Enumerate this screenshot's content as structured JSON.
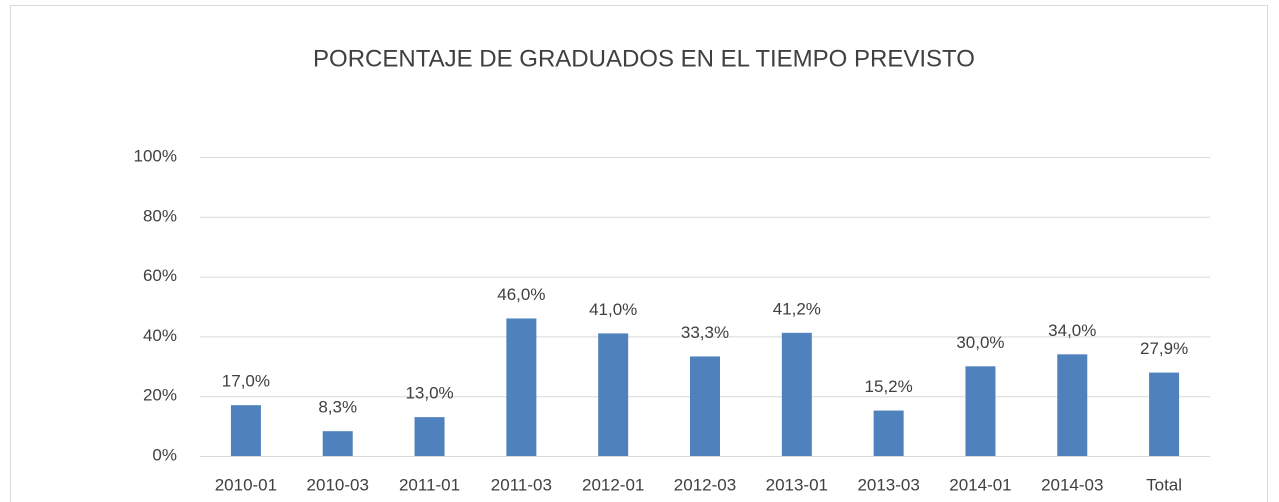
{
  "chart_data": {
    "type": "bar",
    "title": "PORCENTAJE DE GRADUADOS EN EL TIEMPO PREVISTO",
    "categories": [
      "2010-01",
      "2010-03",
      "2011-01",
      "2011-03",
      "2012-01",
      "2012-03",
      "2013-01",
      "2013-03",
      "2014-01",
      "2014-03",
      "Total"
    ],
    "values": [
      17.0,
      8.3,
      13.0,
      46.0,
      41.0,
      33.3,
      41.2,
      15.2,
      30.0,
      34.0,
      27.9
    ],
    "value_labels": [
      "17,0%",
      "8,3%",
      "13,0%",
      "46,0%",
      "41,0%",
      "33,3%",
      "41,2%",
      "15,2%",
      "30,0%",
      "34,0%",
      "27,9%"
    ],
    "color": "#4f81bd",
    "ylim": [
      0,
      100
    ],
    "yticks": [
      {
        "value": 0,
        "label": "0%"
      },
      {
        "value": 20,
        "label": "20%"
      },
      {
        "value": 40,
        "label": "40%"
      },
      {
        "value": 60,
        "label": "60%"
      },
      {
        "value": 80,
        "label": "80%"
      },
      {
        "value": 100,
        "label": "100%"
      }
    ],
    "grid": true
  }
}
